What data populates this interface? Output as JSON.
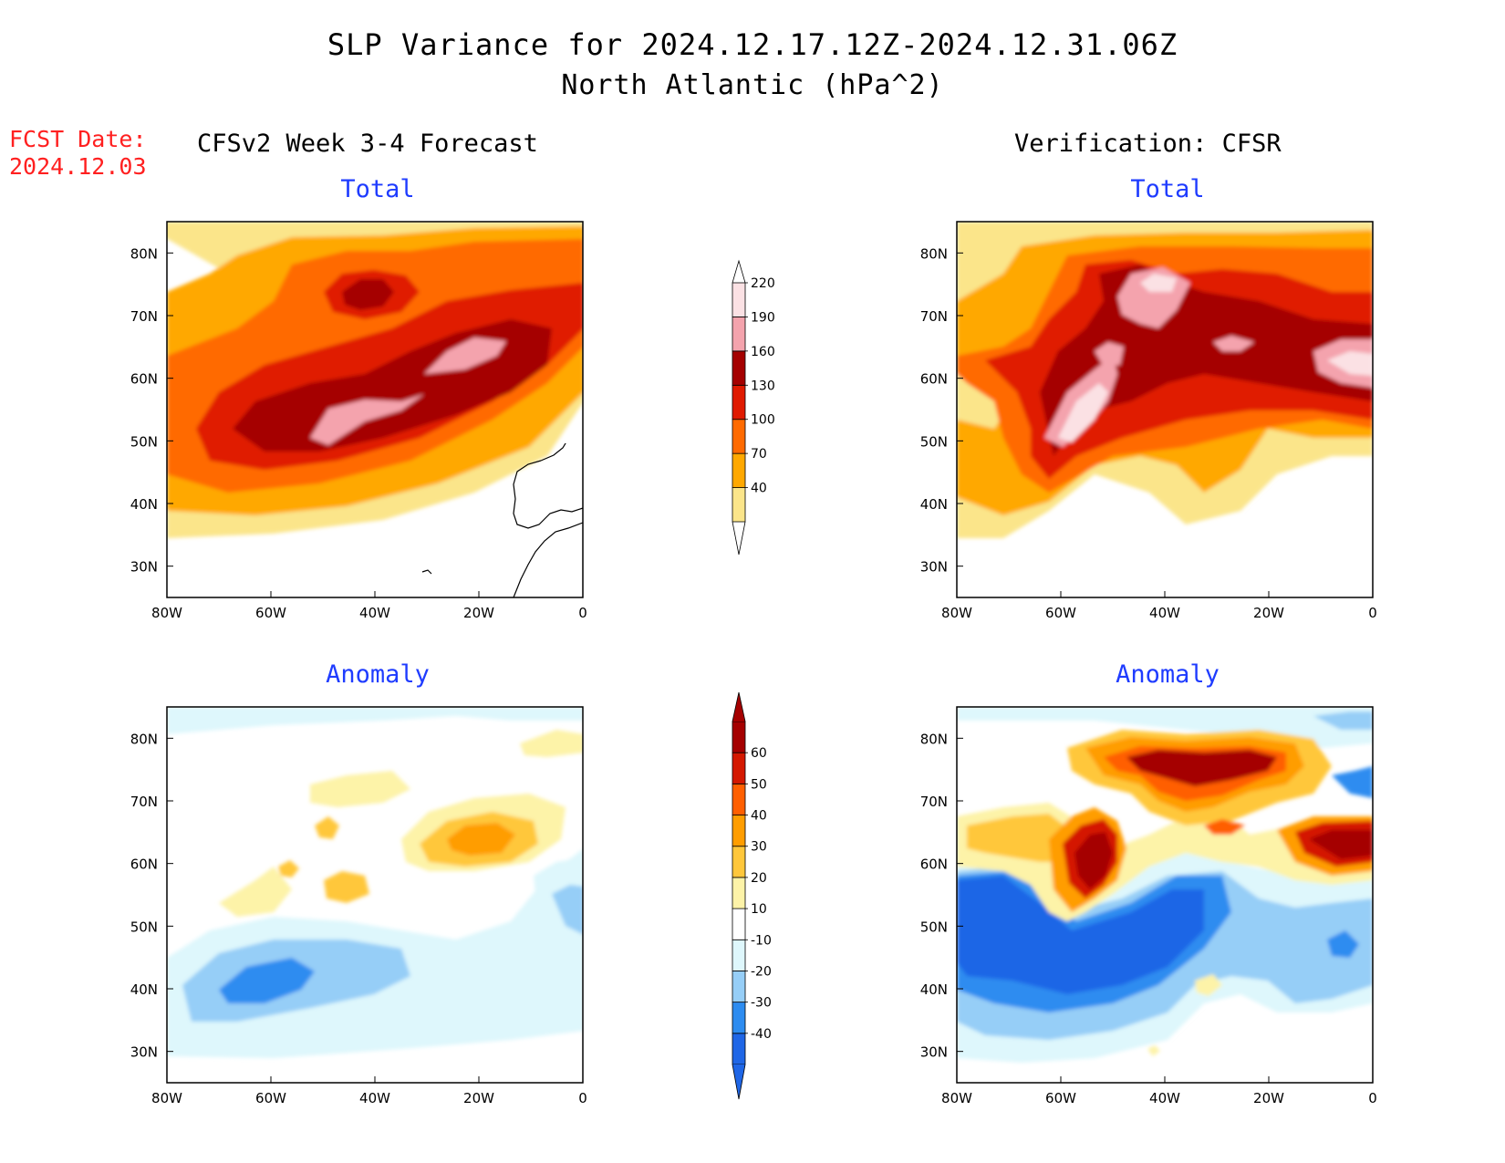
{
  "title": {
    "line1": "SLP Variance for 2024.12.17.12Z-2024.12.31.06Z",
    "line2": "North Atlantic (hPa^2)"
  },
  "forecast_date": {
    "label": "FCST Date:",
    "value": "2024.12.03"
  },
  "columns": {
    "left": "CFSv2 Week 3-4 Forecast",
    "right": "Verification: CFSR"
  },
  "panels": {
    "total": "Total",
    "anomaly": "Anomaly"
  },
  "axes": {
    "lon_ticks": [
      "80W",
      "60W",
      "40W",
      "20W",
      "0"
    ],
    "lat_ticks": [
      "80N",
      "70N",
      "60N",
      "50N",
      "40N",
      "30N"
    ]
  },
  "colorbars": {
    "total": {
      "levels": [
        "40",
        "70",
        "100",
        "130",
        "160",
        "190",
        "220"
      ],
      "colors": [
        "#fbe58a",
        "#ffa800",
        "#ff6a00",
        "#e01a00",
        "#a50000",
        "#f4a3ad",
        "#fbe1e4"
      ]
    },
    "anomaly": {
      "levels": [
        "-40",
        "-30",
        "-20",
        "-10",
        "10",
        "20",
        "30",
        "40",
        "50",
        "60"
      ],
      "colors": [
        "#1f66e6",
        "#2d8cf0",
        "#96cef7",
        "#def7fc",
        "#ffffff",
        "#fdf3a8",
        "#ffc73b",
        "#ff9d00",
        "#ff5f00",
        "#d41800",
        "#a50000"
      ]
    }
  }
}
